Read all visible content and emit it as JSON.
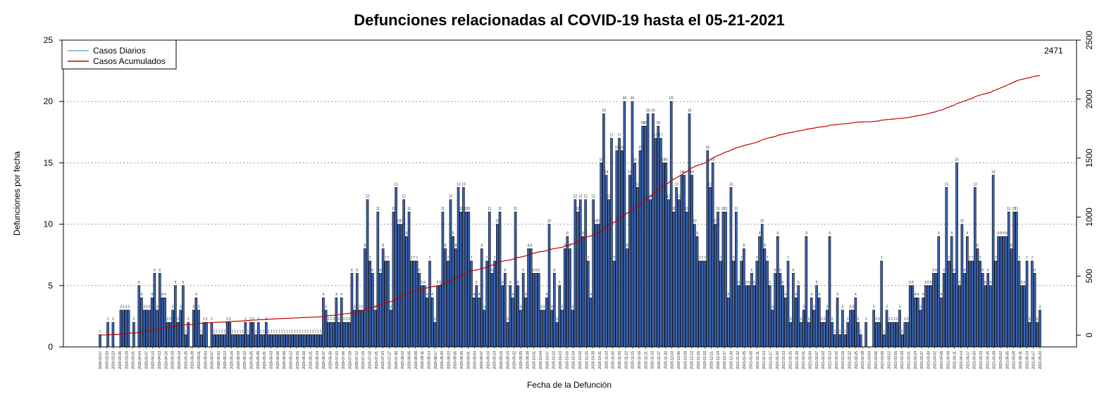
{
  "chart_data": {
    "type": "bar",
    "title": "Defunciones relacionadas al COVID-19 hasta el 05-21-2021",
    "xlabel": "Fecha de la Defunción",
    "ylabel": "Defunciones por fecha",
    "ylim": [
      0,
      25
    ],
    "yticks": [
      "0",
      "5",
      "10",
      "15",
      "20",
      "25"
    ],
    "y2lim": [
      -100,
      2500
    ],
    "y2ticks": [
      "0",
      "500",
      "1000",
      "1500",
      "2000",
      "2500"
    ],
    "grid": "horizontal dotted",
    "legend_position": "top-left",
    "series": [
      {
        "name": "Casos Diarios",
        "color": "#7fa6d9",
        "bar_fill": "#3a64b4"
      },
      {
        "name": "Casos Acumulados",
        "color": "#c00000"
      }
    ],
    "end_label": "2471",
    "date_labels": [
      "2020-03-17",
      "2020-03-20",
      "2020-03-23",
      "2020-03-26",
      "2020-03-29",
      "2020-04-01",
      "2020-04-04",
      "2020-04-07",
      "2020-04-10",
      "2020-04-13",
      "2020-04-16",
      "2020-04-19",
      "2020-04-22",
      "2020-04-25",
      "2020-04-28",
      "2020-05-01",
      "2020-05-04",
      "2020-05-07",
      "2020-05-10",
      "2020-05-13",
      "2020-05-16",
      "2020-05-19",
      "2020-05-22",
      "2020-05-25",
      "2020-05-28",
      "2020-05-31",
      "2020-06-03",
      "2020-06-06",
      "2020-06-09",
      "2020-06-12",
      "2020-06-15",
      "2020-06-18",
      "2020-06-21",
      "2020-06-24",
      "2020-06-27",
      "2020-06-30",
      "2020-07-03",
      "2020-07-06",
      "2020-07-09",
      "2020-07-12",
      "2020-07-15",
      "2020-07-18",
      "2020-07-21",
      "2020-07-24",
      "2020-07-27",
      "2020-07-30",
      "2020-08-02",
      "2020-08-05",
      "2020-08-08",
      "2020-08-11",
      "2020-08-14",
      "2020-08-17",
      "2020-08-20",
      "2020-08-23",
      "2020-08-26",
      "2020-08-29",
      "2020-09-01",
      "2020-09-04",
      "2020-09-07",
      "2020-09-10",
      "2020-09-13",
      "2020-09-16",
      "2020-09-19",
      "2020-09-22",
      "2020-09-25",
      "2020-09-28",
      "2020-10-01",
      "2020-10-04",
      "2020-10-07",
      "2020-10-10",
      "2020-10-13",
      "2020-10-16",
      "2020-10-19",
      "2020-10-22",
      "2020-10-25",
      "2020-10-28",
      "2020-10-31",
      "2020-11-03",
      "2020-11-06",
      "2020-11-09",
      "2020-11-12",
      "2020-11-15",
      "2020-11-18",
      "2020-11-21",
      "2020-11-24",
      "2020-11-27",
      "2020-11-30",
      "2020-12-03",
      "2020-12-06",
      "2020-12-09",
      "2020-12-12",
      "2020-12-15",
      "2020-12-18",
      "2020-12-21",
      "2020-12-24",
      "2020-12-27",
      "2020-12-30",
      "2021-01-02",
      "2021-01-05",
      "2021-01-08",
      "2021-01-11",
      "2021-01-14",
      "2021-01-17",
      "2021-01-20",
      "2021-01-23",
      "2021-01-26",
      "2021-01-29",
      "2021-02-01",
      "2021-02-04",
      "2021-02-07",
      "2021-02-10",
      "2021-02-13",
      "2021-02-16",
      "2021-02-19",
      "2021-02-22",
      "2021-02-25",
      "2021-02-28",
      "2021-03-03",
      "2021-03-06",
      "2021-03-09",
      "2021-03-12",
      "2021-03-15",
      "2021-03-18",
      "2021-03-21",
      "2021-03-24",
      "2021-03-27",
      "2021-03-30",
      "2021-04-02",
      "2021-04-05",
      "2021-04-08",
      "2021-04-11",
      "2021-04-14",
      "2021-04-17",
      "2021-04-20",
      "2021-04-23",
      "2021-04-26",
      "2021-04-29",
      "2021-05-02",
      "2021-05-05",
      "2021-05-08",
      "2021-05-11",
      "2021-05-14",
      "2021-05-17",
      "2021-05-20"
    ],
    "daily_values": [
      1,
      0,
      0,
      2,
      0,
      2,
      0,
      0,
      3,
      3,
      3,
      3,
      0,
      2,
      0,
      5,
      4,
      3,
      3,
      3,
      4,
      6,
      3,
      6,
      4,
      4,
      2,
      2,
      3,
      5,
      2,
      3,
      5,
      1,
      2,
      0,
      3,
      4,
      3,
      1,
      2,
      2,
      0,
      2,
      1,
      1,
      1,
      1,
      1,
      2,
      2,
      1,
      1,
      1,
      1,
      1,
      2,
      1,
      2,
      2,
      1,
      2,
      1,
      1,
      2,
      1,
      1,
      1,
      1,
      1,
      1,
      1,
      1,
      1,
      1,
      1,
      1,
      1,
      1,
      1,
      1,
      1,
      1,
      1,
      1,
      1,
      4,
      3,
      2,
      2,
      2,
      4,
      2,
      4,
      2,
      2,
      2,
      6,
      3,
      6,
      3,
      3,
      8,
      12,
      7,
      6,
      3,
      11,
      6,
      8,
      7,
      7,
      3,
      11,
      13,
      10,
      10,
      12,
      9,
      11,
      7,
      7,
      7,
      6,
      5,
      5,
      4,
      7,
      4,
      2,
      5,
      5,
      11,
      8,
      7,
      12,
      9,
      8,
      13,
      11,
      13,
      11,
      11,
      7,
      4,
      5,
      4,
      8,
      3,
      7,
      11,
      6,
      7,
      10,
      11,
      5,
      6,
      2,
      5,
      4,
      11,
      5,
      3,
      6,
      4,
      8,
      8,
      6,
      6,
      6,
      3,
      3,
      4,
      10,
      3,
      6,
      2,
      5,
      3,
      8,
      9,
      8,
      3,
      12,
      11,
      12,
      9,
      12,
      7,
      4,
      12,
      10,
      10,
      15,
      19,
      14,
      12,
      17,
      7,
      16,
      17,
      16,
      20,
      8,
      14,
      20,
      15,
      13,
      16,
      18,
      18,
      19,
      12,
      19,
      17,
      18,
      17,
      15,
      15,
      12,
      20,
      11,
      13,
      12,
      14,
      14,
      11,
      19,
      14,
      10,
      9,
      7,
      7,
      7,
      16,
      13,
      15,
      10,
      11,
      7,
      11,
      11,
      4,
      13,
      7,
      11,
      5,
      7,
      8,
      5,
      5,
      6,
      5,
      7,
      9,
      10,
      8,
      7,
      5,
      3,
      6,
      9,
      6,
      5,
      4,
      7,
      2,
      6,
      4,
      5,
      2,
      3,
      9,
      2,
      4,
      3,
      5,
      4,
      2,
      2,
      3,
      9,
      2,
      1,
      4,
      1,
      3,
      1,
      2,
      3,
      3,
      4,
      2,
      1,
      0,
      2,
      0,
      0,
      3,
      2,
      2,
      7,
      1,
      3,
      2,
      2,
      2,
      2,
      3,
      1,
      2,
      2,
      5,
      5,
      4,
      4,
      3,
      4,
      5,
      5,
      5,
      6,
      6,
      9,
      4,
      6,
      13,
      7,
      9,
      6,
      15,
      5,
      10,
      6,
      9,
      7,
      7,
      13,
      8,
      7,
      6,
      5,
      6,
      5,
      14,
      7,
      9,
      9,
      9,
      9,
      11,
      8,
      11,
      11,
      7,
      5,
      5,
      7,
      2,
      7,
      6,
      2,
      3
    ],
    "bar_labels": [
      "1",
      "",
      "",
      "2",
      "",
      "2",
      "",
      "",
      "3",
      "3",
      "3",
      "3",
      "",
      "2",
      "",
      "5",
      "4",
      "3",
      "3",
      "3",
      "4",
      "6",
      "3",
      "6",
      "4",
      "4",
      "2",
      "2",
      "3",
      "5",
      "2",
      "3",
      "5",
      "1",
      "2",
      "",
      "3",
      "4",
      "3",
      "1",
      "2",
      "2",
      "",
      "2",
      "1",
      "1",
      "1",
      "1",
      "1",
      "2",
      "2",
      "1",
      "1",
      "1",
      "1",
      "1",
      "2",
      "1",
      "2",
      "2",
      "1",
      "2",
      "1",
      "1",
      "2",
      "1",
      "1",
      "1",
      "1",
      "1",
      "1",
      "1",
      "1",
      "1",
      "1",
      "1",
      "1",
      "1",
      "1",
      "1",
      "1",
      "1",
      "1",
      "1",
      "1",
      "1",
      "4",
      "3",
      "2",
      "2",
      "2",
      "4",
      "2",
      "4",
      "2",
      "2",
      "2",
      "6",
      "3",
      "6",
      "3",
      "3",
      "8",
      "12",
      "7",
      "6",
      "3",
      "11",
      "6",
      "8",
      "7",
      "7",
      "3",
      "11",
      "13",
      "10",
      "10",
      "12",
      "9",
      "11",
      "7",
      "7",
      "7",
      "6",
      "5",
      "5",
      "4",
      "7",
      "4",
      "2",
      "5",
      "5",
      "11",
      "8",
      "7",
      "12",
      "9",
      "8",
      "13",
      "11",
      "13",
      "11",
      "11",
      "7",
      "4",
      "5",
      "4",
      "8",
      "3",
      "7",
      "11",
      "6",
      "7",
      "10",
      "11",
      "5",
      "6",
      "2",
      "5",
      "4",
      "11",
      "5",
      "3",
      "6",
      "4",
      "8",
      "8",
      "6",
      "6",
      "6",
      "3",
      "3",
      "4",
      "10",
      "3",
      "6",
      "2",
      "5",
      "3",
      "8",
      "9",
      "8",
      "3",
      "12",
      "11",
      "12",
      "9",
      "12",
      "7",
      "4",
      "12",
      "10",
      "10",
      "15",
      "19",
      "14",
      "12",
      "17",
      "7",
      "16",
      "17",
      "16",
      "20",
      "8",
      "14",
      "20",
      "15",
      "13",
      "16",
      "18",
      "18",
      "19",
      "12",
      "19",
      "17",
      "18",
      "17",
      "15",
      "15",
      "12",
      "20",
      "11",
      "13",
      "12",
      "14",
      "14",
      "11",
      "19",
      "14",
      "10",
      "9",
      "7",
      "7",
      "7",
      "16",
      "13",
      "15",
      "10",
      "11",
      "7",
      "11",
      "11",
      "4",
      "13",
      "7",
      "11",
      "5",
      "7",
      "8",
      "5",
      "5",
      "6",
      "5",
      "7",
      "9",
      "10",
      "8",
      "7",
      "5",
      "3",
      "6",
      "9",
      "6",
      "5",
      "4",
      "7",
      "2",
      "6",
      "4",
      "5",
      "2",
      "3",
      "9",
      "2",
      "4",
      "3",
      "5",
      "4",
      "2",
      "2",
      "3",
      "9",
      "2",
      "1",
      "4",
      "1",
      "3",
      "1",
      "2",
      "3",
      "3",
      "4",
      "2",
      "1",
      "",
      "2",
      "",
      "",
      "3",
      "2",
      "2",
      "7",
      "1",
      "3",
      "2",
      "2",
      "2",
      "2",
      "3",
      "1",
      "2",
      "2",
      "5",
      "5",
      "4",
      "4",
      "3",
      "4",
      "5",
      "5",
      "5",
      "6",
      "6",
      "9",
      "4",
      "6",
      "13",
      "7",
      "9",
      "6",
      "15",
      "5",
      "10",
      "6",
      "9",
      "7",
      "7",
      "13",
      "8",
      "7",
      "6",
      "5",
      "6",
      "5",
      "14",
      "7",
      "9",
      "9",
      "9",
      "9",
      "11",
      "8",
      "11",
      "11",
      "7",
      "5",
      "5",
      "7",
      "2",
      "7",
      "6",
      "2",
      "3"
    ]
  }
}
